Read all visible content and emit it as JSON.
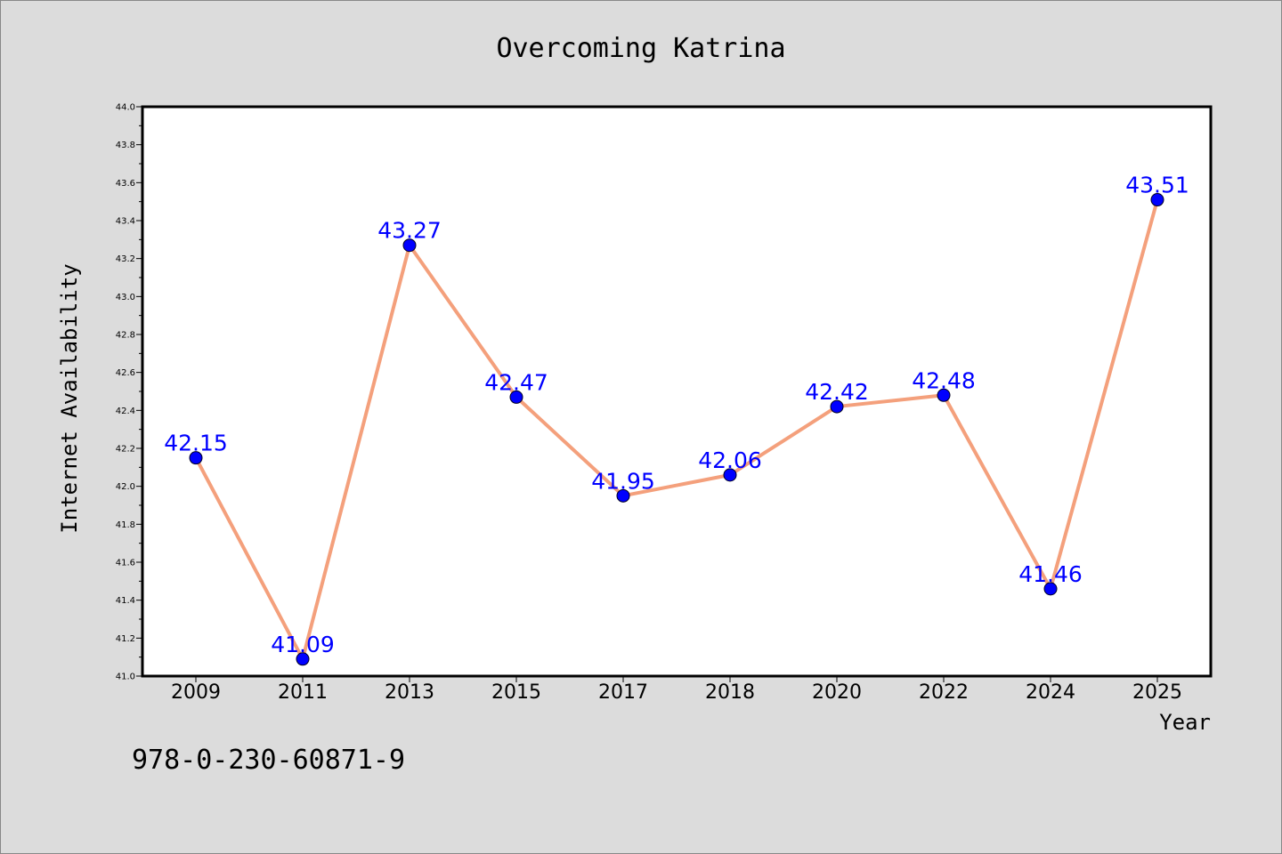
{
  "chart_data": {
    "type": "line",
    "title": "Overcoming Katrina",
    "xlabel": "Year",
    "ylabel": "Internet Availability",
    "categories": [
      "2009",
      "2011",
      "2013",
      "2015",
      "2017",
      "2018",
      "2020",
      "2022",
      "2024",
      "2025"
    ],
    "series": [
      {
        "values": [
          42.15,
          41.09,
          43.27,
          42.47,
          41.95,
          42.06,
          42.42,
          42.48,
          41.46,
          43.51
        ],
        "line_color": "#f4a07c",
        "marker_color": "#0000ff"
      }
    ],
    "data_labels": [
      "42.15",
      "41.09",
      "43.27",
      "42.47",
      "41.95",
      "42.06",
      "42.42",
      "42.48",
      "41.46",
      "43.51"
    ],
    "ylim": [
      41.0,
      44.0
    ],
    "yticks": [
      "41.0",
      "41.2",
      "41.4",
      "41.6",
      "41.8",
      "42.0",
      "42.2",
      "42.4",
      "42.6",
      "42.8",
      "43.0",
      "43.2",
      "43.4",
      "43.6",
      "43.8",
      "44.0"
    ],
    "grid": false,
    "legend": "none"
  },
  "footer": {
    "isbn": "978-0-230-60871-9"
  },
  "colors": {
    "background": "#dcdcdc",
    "plot_background": "#ffffff",
    "line": "#f4a07c",
    "marker": "#0000ff",
    "data_label": "#0000ff"
  }
}
